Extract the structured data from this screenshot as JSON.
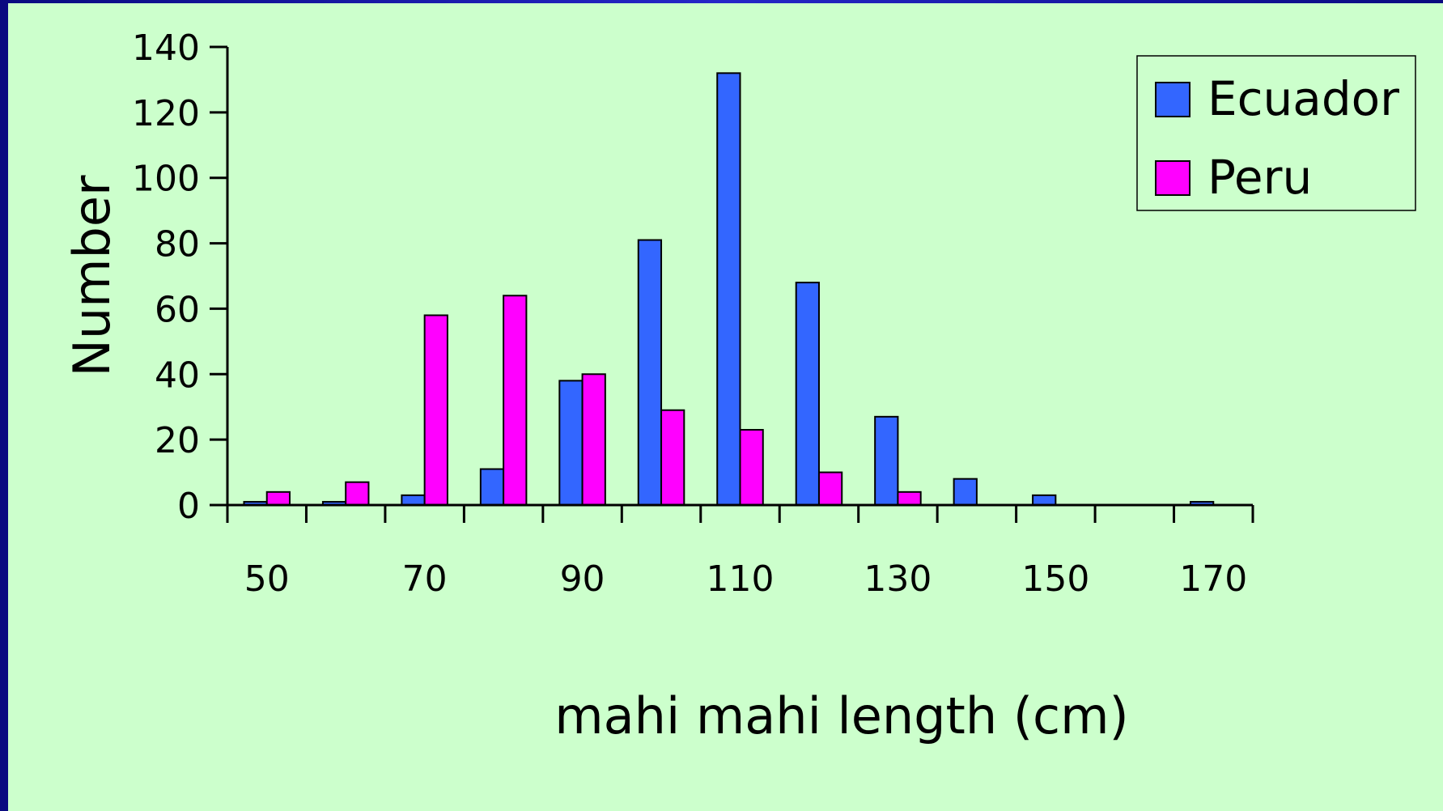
{
  "chart_data": {
    "type": "bar",
    "title": "",
    "xlabel": "mahi mahi length (cm)",
    "ylabel": "Number",
    "categories": [
      50,
      60,
      70,
      80,
      90,
      100,
      110,
      120,
      130,
      140,
      150,
      160,
      170
    ],
    "x_tick_labels": [
      "50",
      "70",
      "90",
      "110",
      "130",
      "150",
      "170"
    ],
    "y_tick_labels": [
      "0",
      "20",
      "40",
      "60",
      "80",
      "100",
      "120",
      "140"
    ],
    "ylim": [
      0,
      140
    ],
    "y_step": 20,
    "grid": false,
    "legend_position": "top-right",
    "series": [
      {
        "name": "Ecuador",
        "color": "#3366ff",
        "values": [
          1,
          1,
          3,
          11,
          38,
          81,
          132,
          68,
          27,
          8,
          3,
          0,
          1
        ]
      },
      {
        "name": "Peru",
        "color": "#ff00ff",
        "values": [
          4,
          7,
          58,
          64,
          40,
          29,
          23,
          10,
          4,
          0,
          0,
          0,
          0
        ]
      }
    ]
  }
}
